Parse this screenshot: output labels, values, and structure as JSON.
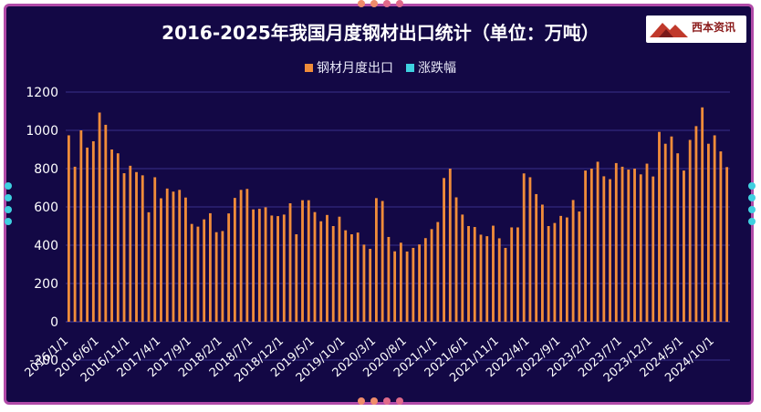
{
  "colors": {
    "background": "#130845",
    "border": "#b14aa8",
    "bar": "#f08c3a",
    "line": "#3fd0e0",
    "grid": "#3a2f8a",
    "text": "#ffffff"
  },
  "logo": {
    "text": "西本资讯"
  },
  "chart_data": {
    "type": "bar",
    "title": "2016-2025年我国月度钢材出口统计（单位：万吨）",
    "legend_position": "top",
    "grid": true,
    "ylim": [
      -200,
      1200
    ],
    "yticks": [
      -200,
      0,
      200,
      400,
      600,
      800,
      1000,
      1200
    ],
    "xtick_labels": [
      "2016/1/1",
      "2016/6/1",
      "2016/11/1",
      "2017/4/1",
      "2017/9/1",
      "2018/2/1",
      "2018/7/1",
      "2018/12/1",
      "2019/5/1",
      "2019/10/1",
      "2020/3/1",
      "2020/8/1",
      "2021/1/1",
      "2021/6/1",
      "2021/11/1",
      "2022/4/1",
      "2022/9/1",
      "2023/2/1",
      "2023/7/1",
      "2023/12/1",
      "2024/5/1",
      "2024/10/1"
    ],
    "series": [
      {
        "name": "钢材月度出口",
        "values": [
          974,
          810,
          1000,
          910,
          943,
          1093,
          1029,
          900,
          880,
          776,
          815,
          782,
          765,
          572,
          755,
          645,
          696,
          680,
          689,
          649,
          511,
          497,
          535,
          567,
          468,
          474,
          566,
          647,
          689,
          694,
          587,
          590,
          598,
          555,
          552,
          560,
          619,
          457,
          635,
          635,
          573,
          525,
          558,
          500,
          549,
          478,
          457,
          466,
          403,
          381,
          646,
          631,
          443,
          368,
          413,
          367,
          386,
          404,
          437,
          484,
          521,
          751,
          800,
          650,
          560,
          500,
          495,
          455,
          447,
          502,
          436,
          386,
          493,
          493,
          775,
          755,
          667,
          612,
          500,
          516,
          553,
          545,
          636,
          576,
          790,
          800,
          836,
          760,
          745,
          829,
          810,
          795,
          800,
          770,
          826,
          759,
          992,
          930,
          968,
          880,
          790,
          950,
          1022,
          1120,
          930,
          974,
          890,
          808
        ],
        "color": "#f08c3a"
      },
      {
        "name": "涨跌幅",
        "values": [],
        "color": "#3fd0e0"
      }
    ]
  }
}
